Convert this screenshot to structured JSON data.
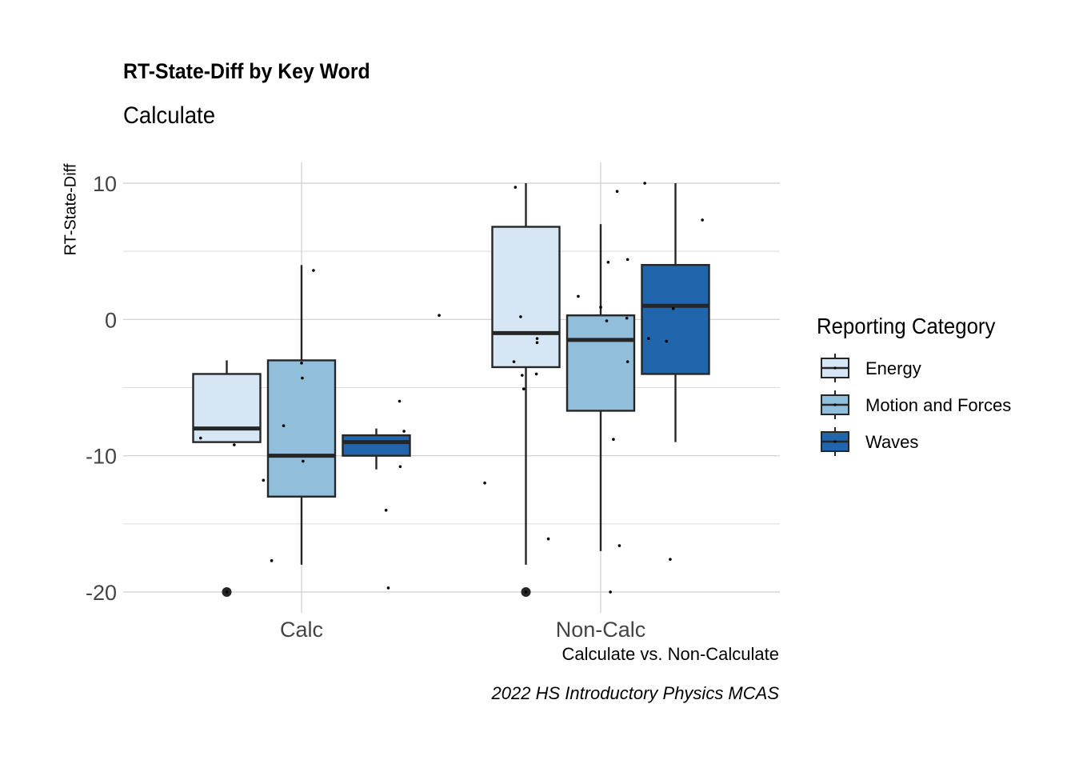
{
  "chart_data": {
    "type": "boxplot",
    "title": "RT-State-Diff by Key Word",
    "subtitle": "Calculate",
    "xlabel": "Calculate vs. Non-Calculate",
    "ylabel": "RT-State-Diff",
    "caption": "2022 HS Introductory Physics MCAS",
    "categories": [
      "Calc",
      "Non-Calc"
    ],
    "ylim": [
      -21.5,
      11.5
    ],
    "yticks": [
      10,
      0,
      -10,
      -20
    ],
    "grid": true,
    "legend": {
      "title": "Reporting Category",
      "position": "right"
    },
    "series": [
      {
        "name": "Energy",
        "color": "#d6e6f4",
        "boxes": [
          {
            "category": "Calc",
            "min": -9,
            "q1": -9,
            "median": -8,
            "q3": -4,
            "max": -3,
            "outliers": [
              -20
            ],
            "points": [
              [
                -0.35,
                -8.7
              ],
              [
                0.1,
                -9.2
              ],
              [
                0.0,
                -20
              ]
            ]
          },
          {
            "category": "Non-Calc",
            "min": -18,
            "q1": -3.5,
            "median": -1,
            "q3": 6.8,
            "max": 10,
            "outliers": [
              -20
            ],
            "points": [
              [
                -0.14,
                9.7
              ],
              [
                -0.07,
                0.2
              ],
              [
                -0.16,
                -3.1
              ],
              [
                -0.05,
                -4.1
              ],
              [
                -0.03,
                -5.1
              ],
              [
                0.15,
                -1.4
              ],
              [
                0.15,
                -1.7
              ],
              [
                0.14,
                -4.0
              ],
              [
                0.3,
                -16.1
              ],
              [
                -0.55,
                -12.0
              ],
              [
                0.0,
                -20
              ]
            ]
          }
        ]
      },
      {
        "name": "Motion and Forces",
        "color": "#91bfdb",
        "boxes": [
          {
            "category": "Calc",
            "min": -18,
            "q1": -13,
            "median": -10,
            "q3": -3,
            "max": 4,
            "outliers": [],
            "points": [
              [
                0.16,
                3.6
              ],
              [
                0.0,
                -3.2
              ],
              [
                0.01,
                -4.3
              ],
              [
                -0.24,
                -7.8
              ],
              [
                0.02,
                -10.4
              ],
              [
                -0.51,
                -11.8
              ],
              [
                -0.4,
                -17.7
              ]
            ]
          },
          {
            "category": "Non-Calc",
            "min": -17,
            "q1": -6.7,
            "median": -1.5,
            "q3": 0.3,
            "max": 7,
            "outliers": [],
            "points": [
              [
                0.22,
                9.4
              ],
              [
                0.1,
                4.2
              ],
              [
                0.36,
                4.4
              ],
              [
                -0.3,
                1.7
              ],
              [
                0.0,
                0.9
              ],
              [
                0.35,
                0.1
              ],
              [
                0.08,
                -0.1
              ],
              [
                0.36,
                -3.1
              ],
              [
                0.17,
                -8.8
              ],
              [
                0.25,
                -16.6
              ],
              [
                0.13,
                -20
              ]
            ]
          }
        ]
      },
      {
        "name": "Waves",
        "color": "#2166ac",
        "boxes": [
          {
            "category": "Calc",
            "min": -11,
            "q1": -10,
            "median": -9,
            "q3": -8.5,
            "max": -8,
            "outliers": [],
            "points": [
              [
                0.84,
                0.3
              ],
              [
                0.31,
                -6.0
              ],
              [
                0.37,
                -8.2
              ],
              [
                0.32,
                -10.8
              ],
              [
                0.13,
                -14.0
              ],
              [
                0.16,
                -19.7
              ]
            ]
          },
          {
            "category": "Non-Calc",
            "min": -9,
            "q1": -4,
            "median": 1,
            "q3": 4,
            "max": 10,
            "outliers": [],
            "points": [
              [
                -0.41,
                10.0
              ],
              [
                0.36,
                7.3
              ],
              [
                -0.03,
                0.8
              ],
              [
                -0.36,
                -1.4
              ],
              [
                -0.12,
                -1.6
              ],
              [
                -0.07,
                -17.6
              ]
            ]
          }
        ]
      }
    ]
  }
}
